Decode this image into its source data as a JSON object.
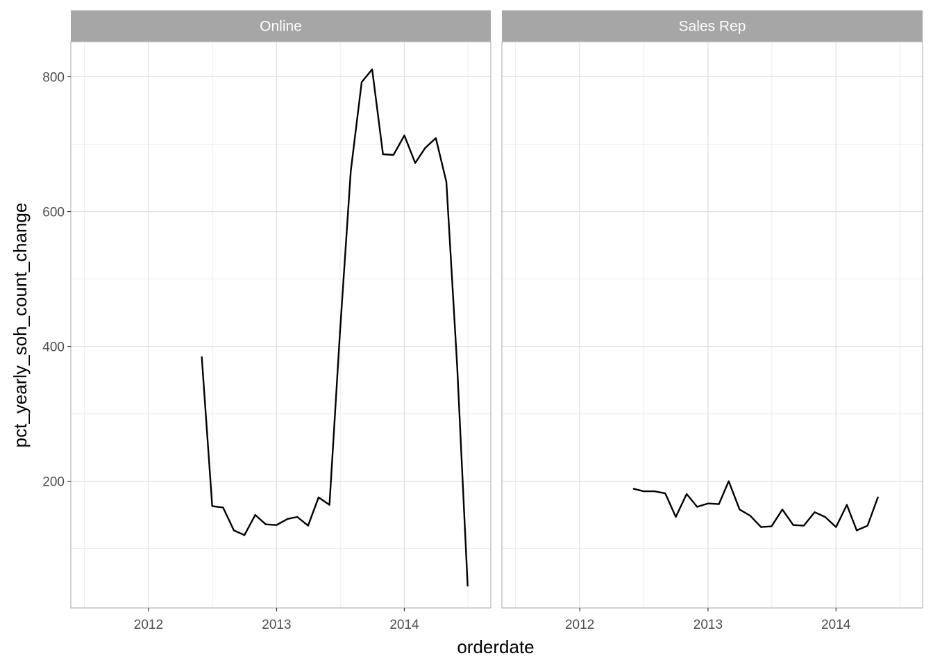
{
  "chart_data": {
    "type": "line",
    "xlabel": "orderdate",
    "ylabel": "pct_yearly_soh_count_change",
    "xlim": [
      "2011-05-24",
      "2014-09-05"
    ],
    "ylim": [
      12,
      852
    ],
    "x_ticks": [
      "2012",
      "2013",
      "2014"
    ],
    "y_ticks": [
      200,
      400,
      600,
      800
    ],
    "grid": true,
    "colors": {
      "line": "#000000",
      "strip_bg": "#a6a6a6",
      "grid": "#dedede",
      "panel_border": "#b3b3b3"
    },
    "panels": [
      {
        "strip": "Online",
        "series": [
          {
            "x": [
              "2012-06-01",
              "2012-07-01",
              "2012-08-01",
              "2012-09-01",
              "2012-10-01",
              "2012-11-01",
              "2012-12-01",
              "2013-01-01",
              "2013-02-01",
              "2013-03-01",
              "2013-04-01",
              "2013-05-01",
              "2013-06-01",
              "2013-07-01",
              "2013-08-01",
              "2013-09-01",
              "2013-10-01",
              "2013-11-01",
              "2013-12-01",
              "2014-01-01",
              "2014-02-01",
              "2014-03-01",
              "2014-04-01",
              "2014-05-01",
              "2014-06-01",
              "2014-07-01"
            ],
            "y": [
              385,
              163,
              161,
              127,
              120,
              150,
              136,
              135,
              144,
              147,
              134,
              176,
              165,
              420,
              660,
              792,
              811,
              685,
              684,
              713,
              672,
              694,
              709,
              644,
              370,
              44
            ]
          }
        ]
      },
      {
        "strip": "Sales Rep",
        "series": [
          {
            "x": [
              "2012-06-01",
              "2012-07-01",
              "2012-08-01",
              "2012-09-01",
              "2012-10-01",
              "2012-11-01",
              "2012-12-01",
              "2013-01-01",
              "2013-02-01",
              "2013-03-01",
              "2013-04-01",
              "2013-05-01",
              "2013-06-01",
              "2013-07-01",
              "2013-08-01",
              "2013-09-01",
              "2013-10-01",
              "2013-11-01",
              "2013-12-01",
              "2014-01-01",
              "2014-02-01",
              "2014-03-01",
              "2014-04-01",
              "2014-05-01"
            ],
            "y": [
              189,
              185,
              185,
              182,
              147,
              181,
              162,
              167,
              166,
              200,
              158,
              149,
              132,
              133,
              158,
              135,
              134,
              154,
              147,
              132,
              165,
              127,
              134,
              177
            ]
          }
        ]
      }
    ]
  }
}
